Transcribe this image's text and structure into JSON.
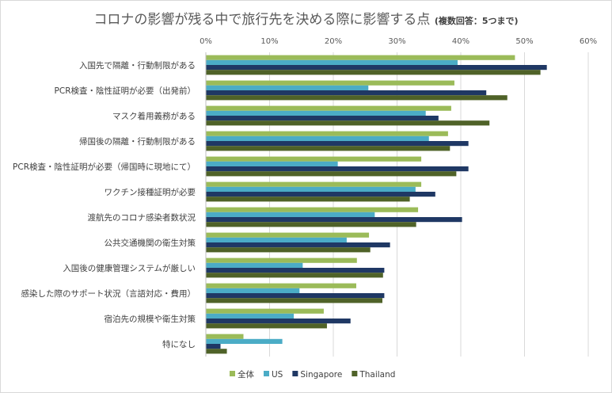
{
  "title": "コロナの影響が残る中で旅行先を決める際に影響する点",
  "subtitle": "(複数回答：5つまで)",
  "chart_data": {
    "type": "bar",
    "orientation": "horizontal",
    "title": "コロナの影響が残る中で旅行先を決める際に影響する点",
    "subtitle": "(複数回答：5つまで)",
    "categories": [
      "入国先で隔離・行動制限がある",
      "PCR検査・陰性証明が必要（出発前）",
      "マスク着用義務がある",
      "帰国後の隔離・行動制限がある",
      "PCR検査・陰性証明が必要（帰国時に現地にて）",
      "ワクチン接種証明が必要",
      "渡航先のコロナ感染者数状況",
      "公共交通機関の衛生対策",
      "入国後の健康管理システムが厳しい",
      "感染した際のサポート状況（言語対応・費用）",
      "宿泊先の規模や衛生対策",
      "特になし"
    ],
    "xlim": [
      0,
      60
    ],
    "xticks": [
      "0%",
      "10%",
      "20%",
      "30%",
      "40%",
      "50%",
      "60%"
    ],
    "grid": true,
    "legend_position": "bottom",
    "series": [
      {
        "name": "全体",
        "color": "#9bbb59",
        "values": [
          48.5,
          39,
          38.5,
          38,
          33.8,
          33.8,
          33.3,
          25.6,
          23.7,
          23.6,
          18.5,
          5.9
        ]
      },
      {
        "name": "US",
        "color": "#4bacc6",
        "values": [
          39.5,
          25.5,
          34.5,
          35,
          20.7,
          32.9,
          26.5,
          22.1,
          15.2,
          14.7,
          13.8,
          12.0
        ]
      },
      {
        "name": "Singapore",
        "color": "#1f3864",
        "values": [
          53.5,
          44,
          36.5,
          41.2,
          41.2,
          36,
          40.2,
          28.9,
          28,
          28,
          22.7,
          2.3
        ]
      },
      {
        "name": "Thailand",
        "color": "#4f6228",
        "values": [
          52.5,
          47.3,
          44.5,
          38.3,
          39.3,
          32,
          33,
          25.8,
          27.8,
          27.7,
          19,
          3.3
        ]
      }
    ]
  }
}
